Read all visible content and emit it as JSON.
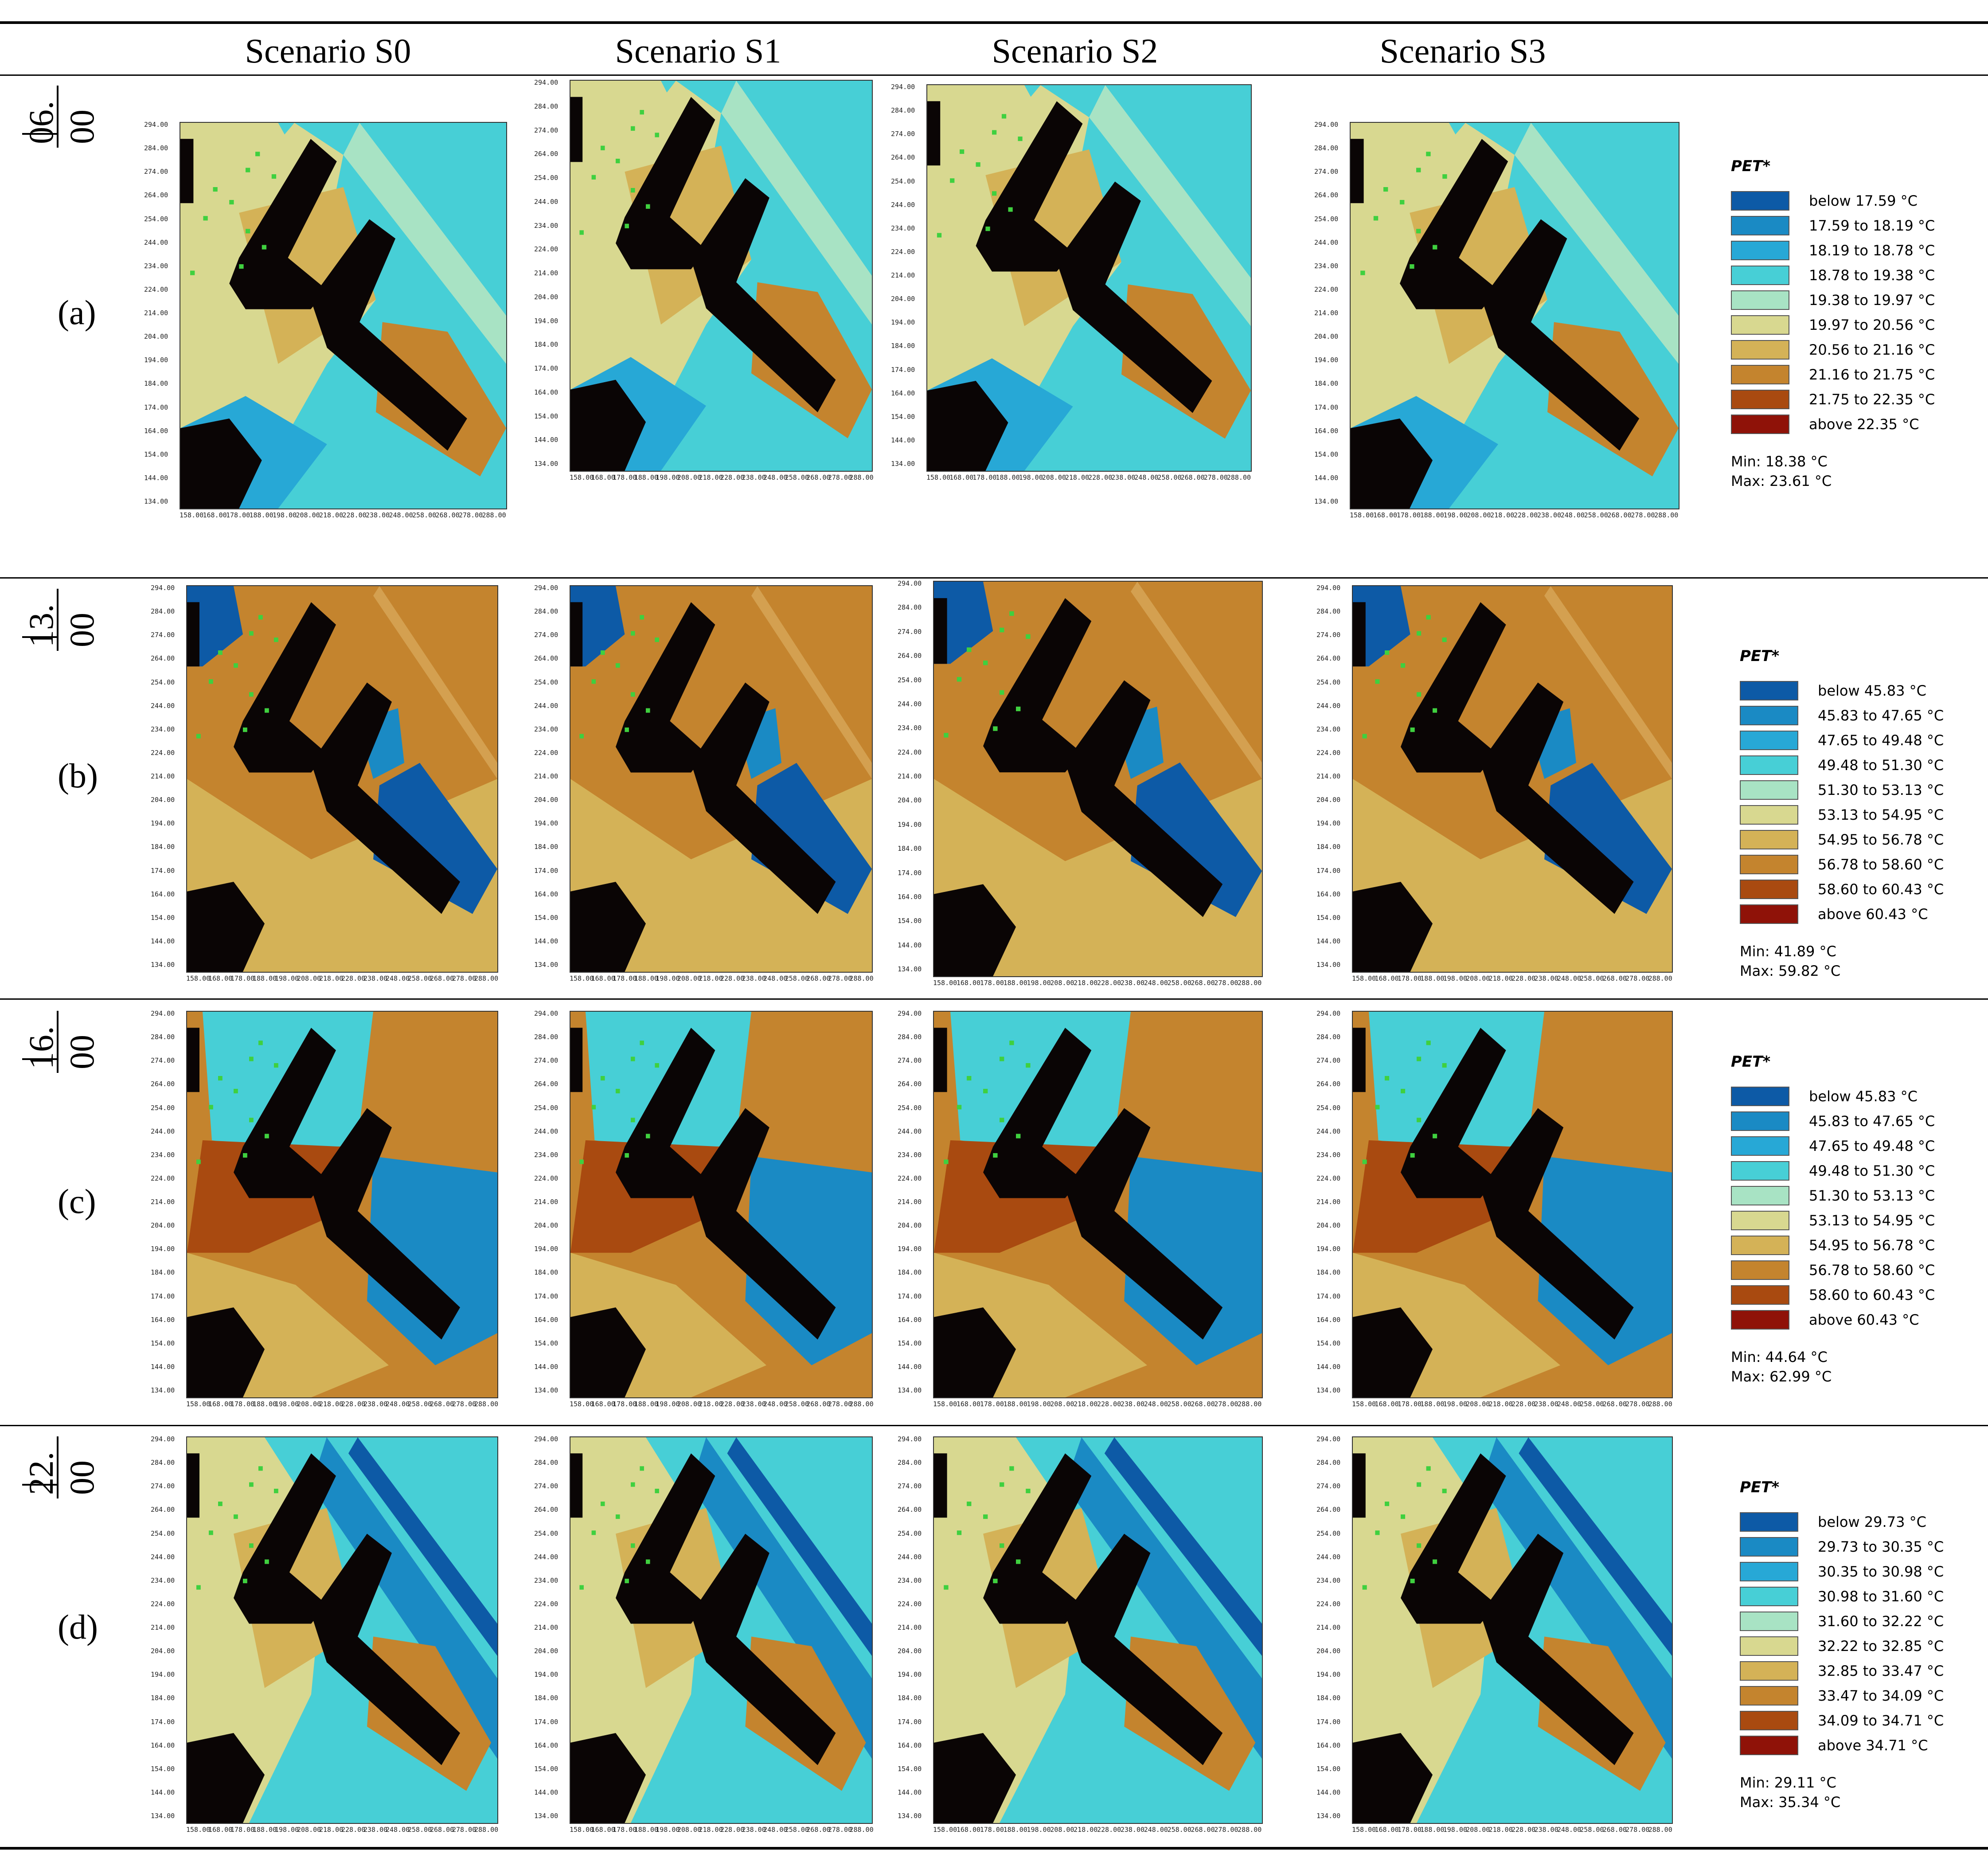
{
  "scenarios": [
    "Scenario S0",
    "Scenario S1",
    "Scenario S2",
    "Scenario S3"
  ],
  "x_ticks": [
    "158.00",
    "168.00",
    "178.00",
    "188.00",
    "198.00",
    "208.00",
    "218.00",
    "228.00",
    "238.00",
    "248.00",
    "258.00",
    "268.00",
    "278.00",
    "288.00"
  ],
  "y_ticks": [
    "294.00",
    "284.00",
    "274.00",
    "264.00",
    "254.00",
    "244.00",
    "234.00",
    "224.00",
    "214.00",
    "204.00",
    "194.00",
    "184.00",
    "174.00",
    "164.00",
    "154.00",
    "144.00",
    "134.00"
  ],
  "rows": [
    {
      "letter": "(a)",
      "hour": "06.",
      "minute": "00",
      "legend": {
        "title": "PET*",
        "items": [
          "below 17.59 °C",
          "17.59 to 18.19 °C",
          "18.19 to 18.78 °C",
          "18.78 to 19.38 °C",
          "19.38 to 19.97 °C",
          "19.97 to 20.56 °C",
          "20.56 to 21.16 °C",
          "21.16 to 21.75 °C",
          "21.75 to 22.35 °C",
          "above 22.35 °C"
        ],
        "min": "Min: 18.38 °C",
        "max": "Max: 23.61 °C"
      }
    },
    {
      "letter": "(b)",
      "hour": "13.",
      "minute": "00",
      "legend": {
        "title": "PET*",
        "items": [
          "below 45.83 °C",
          "45.83 to 47.65 °C",
          "47.65 to 49.48 °C",
          "49.48 to 51.30 °C",
          "51.30 to 53.13 °C",
          "53.13 to 54.95 °C",
          "54.95 to 56.78 °C",
          "56.78 to 58.60 °C",
          "58.60 to 60.43 °C",
          "above 60.43 °C"
        ],
        "min": "Min: 41.89 °C",
        "max": "Max: 59.82 °C"
      }
    },
    {
      "letter": "(c)",
      "hour": "16.",
      "minute": "00",
      "legend": {
        "title": "PET*",
        "items": [
          "below 45.83 °C",
          "45.83 to 47.65 °C",
          "47.65 to 49.48 °C",
          "49.48 to 51.30 °C",
          "51.30 to 53.13 °C",
          "53.13 to 54.95 °C",
          "54.95 to 56.78 °C",
          "56.78 to 58.60 °C",
          "58.60 to 60.43 °C",
          "above 60.43 °C"
        ],
        "min": "Min: 44.64 °C",
        "max": "Max: 62.99 °C"
      }
    },
    {
      "letter": "(d)",
      "hour": "22.",
      "minute": "00",
      "legend": {
        "title": "PET*",
        "items": [
          "below 29.73 °C",
          "29.73 to 30.35 °C",
          "30.35 to 30.98 °C",
          "30.98 to 31.60 °C",
          "31.60 to 32.22 °C",
          "32.22 to 32.85 °C",
          "32.85 to 33.47 °C",
          "33.47 to 34.09 °C",
          "34.09 to 34.71 °C",
          "above 34.71 °C"
        ],
        "min": "Min: 29.11 °C",
        "max": "Max: 35.34 °C"
      }
    }
  ],
  "palette": [
    "#0d5aa6",
    "#1a8ac4",
    "#27a8d6",
    "#47cfd6",
    "#a8e3c4",
    "#d8d890",
    "#d4b257",
    "#c4842e",
    "#a94a10",
    "#8f1208"
  ],
  "building_color": "#0a0505"
}
